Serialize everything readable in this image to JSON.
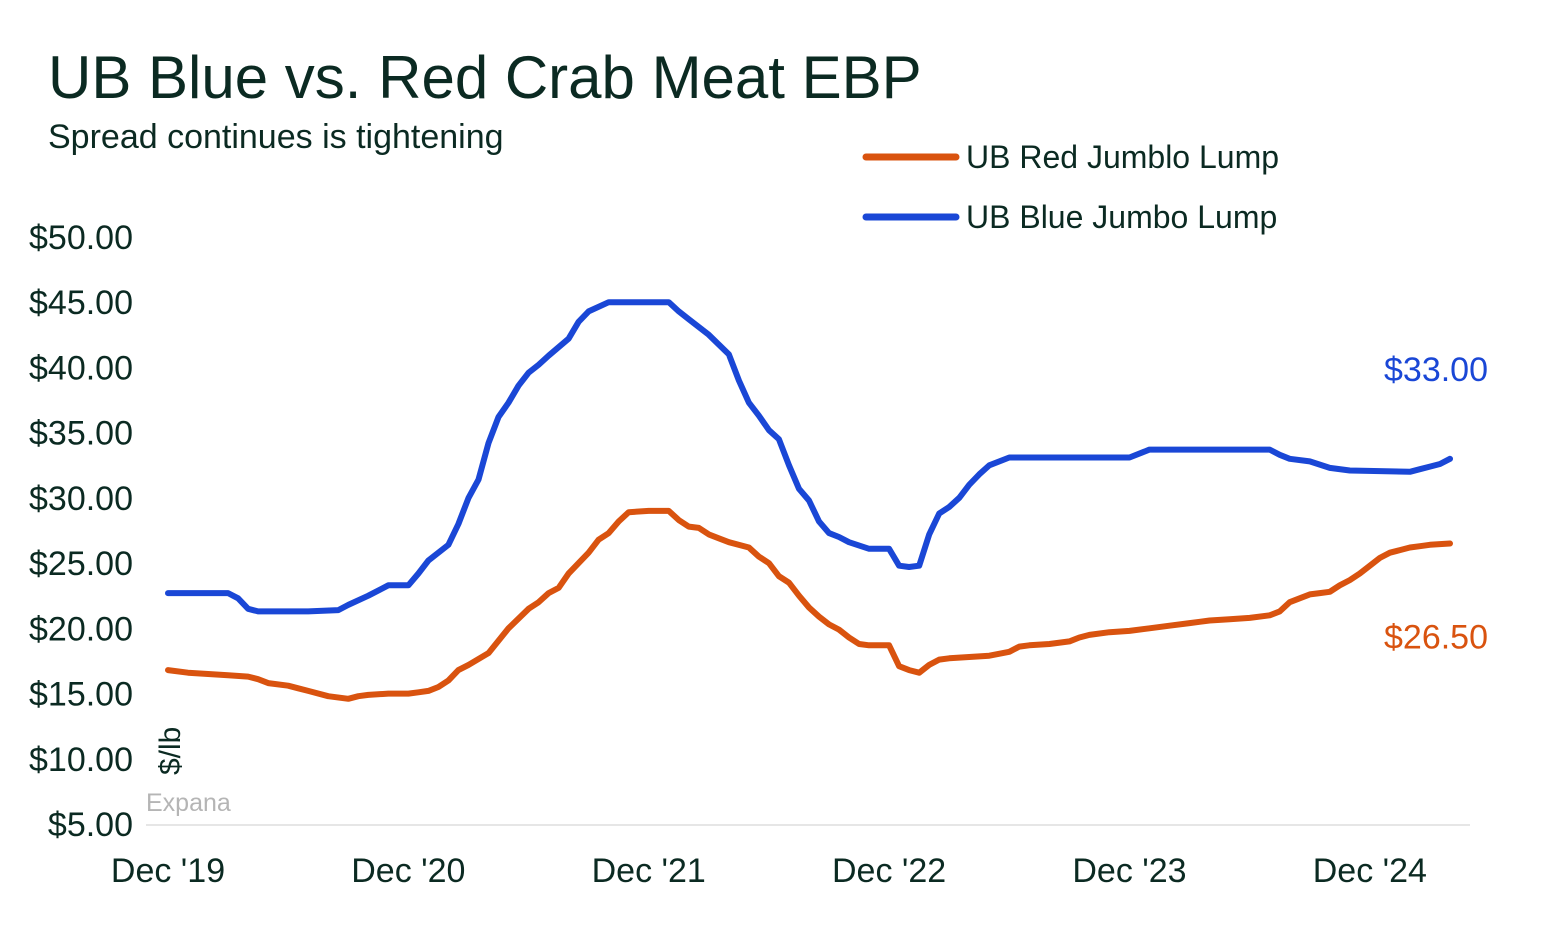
{
  "chart_data": {
    "type": "line",
    "title": "UB Blue vs. Red Crab Meat EBP",
    "subtitle": "Spread continues is tightening",
    "ylabel": "$/lb",
    "source": "Expana",
    "ylim": [
      5,
      50
    ],
    "y_ticks": [
      "$50.00",
      "$45.00",
      "$40.00",
      "$35.00",
      "$30.00",
      "$25.00",
      "$20.00",
      "$15.00",
      "$10.00",
      "$5.00"
    ],
    "y_tick_values": [
      50,
      45,
      40,
      35,
      30,
      25,
      20,
      15,
      10,
      5
    ],
    "x_ticks": [
      "Dec '19",
      "Dec '20",
      "Dec '21",
      "Dec '22",
      "Dec '23",
      "Dec '24"
    ],
    "x_tick_months": [
      0,
      12,
      24,
      36,
      48,
      60
    ],
    "x_range_months": [
      0,
      65
    ],
    "legend_position": "top-right",
    "series": [
      {
        "name": "UB Red Jumblo Lump",
        "color": "#d9530f",
        "end_label": "$26.50",
        "points": [
          [
            0,
            16.8
          ],
          [
            1,
            16.6
          ],
          [
            2,
            16.5
          ],
          [
            3,
            16.4
          ],
          [
            4,
            16.3
          ],
          [
            4.5,
            16.1
          ],
          [
            5,
            15.8
          ],
          [
            6,
            15.6
          ],
          [
            6.5,
            15.4
          ],
          [
            7,
            15.2
          ],
          [
            8,
            14.8
          ],
          [
            9,
            14.6
          ],
          [
            9.5,
            14.8
          ],
          [
            10,
            14.9
          ],
          [
            11,
            15
          ],
          [
            12,
            15
          ],
          [
            12.5,
            15.1
          ],
          [
            13,
            15.2
          ],
          [
            13.5,
            15.5
          ],
          [
            14,
            16
          ],
          [
            14.5,
            16.8
          ],
          [
            15,
            17.2
          ],
          [
            16,
            18.1
          ],
          [
            17,
            20
          ],
          [
            18,
            21.5
          ],
          [
            18.5,
            22
          ],
          [
            19,
            22.7
          ],
          [
            19.5,
            23.1
          ],
          [
            20,
            24.2
          ],
          [
            21,
            25.8
          ],
          [
            21.5,
            26.8
          ],
          [
            22,
            27.3
          ],
          [
            22.5,
            28.2
          ],
          [
            23,
            28.9
          ],
          [
            24,
            29
          ],
          [
            25,
            29
          ],
          [
            25.5,
            28.3
          ],
          [
            26,
            27.8
          ],
          [
            26.5,
            27.7
          ],
          [
            27,
            27.2
          ],
          [
            27.5,
            26.9
          ],
          [
            28,
            26.6
          ],
          [
            29,
            26.2
          ],
          [
            29.5,
            25.5
          ],
          [
            30,
            25
          ],
          [
            30.5,
            24
          ],
          [
            31,
            23.5
          ],
          [
            31.5,
            22.5
          ],
          [
            32,
            21.6
          ],
          [
            32.5,
            20.9
          ],
          [
            33,
            20.3
          ],
          [
            33.5,
            19.9
          ],
          [
            34,
            19.3
          ],
          [
            34.5,
            18.8
          ],
          [
            35,
            18.7
          ],
          [
            36,
            18.7
          ],
          [
            36.5,
            17.1
          ],
          [
            37,
            16.8
          ],
          [
            37.5,
            16.6
          ],
          [
            38,
            17.2
          ],
          [
            38.5,
            17.6
          ],
          [
            39,
            17.7
          ],
          [
            40,
            17.8
          ],
          [
            41,
            17.9
          ],
          [
            42,
            18.2
          ],
          [
            42.5,
            18.6
          ],
          [
            43,
            18.7
          ],
          [
            44,
            18.8
          ],
          [
            45,
            19
          ],
          [
            45.5,
            19.3
          ],
          [
            46,
            19.5
          ],
          [
            47,
            19.7
          ],
          [
            48,
            19.8
          ],
          [
            49,
            20
          ],
          [
            50,
            20.2
          ],
          [
            51,
            20.4
          ],
          [
            51.5,
            20.5
          ],
          [
            52,
            20.6
          ],
          [
            53,
            20.7
          ],
          [
            54,
            20.8
          ],
          [
            55,
            21
          ],
          [
            55.5,
            21.3
          ],
          [
            56,
            22
          ],
          [
            56.5,
            22.3
          ],
          [
            57,
            22.6
          ],
          [
            57.5,
            22.7
          ],
          [
            58,
            22.8
          ],
          [
            58.5,
            23.3
          ],
          [
            59,
            23.7
          ],
          [
            59.5,
            24.2
          ],
          [
            60,
            24.8
          ],
          [
            60.5,
            25.4
          ],
          [
            61,
            25.8
          ],
          [
            61.5,
            26
          ],
          [
            62,
            26.2
          ],
          [
            62.5,
            26.3
          ],
          [
            63,
            26.4
          ],
          [
            64,
            26.5
          ]
        ]
      },
      {
        "name": "UB Blue Jumbo Lump",
        "color": "#1a47d6",
        "end_label": "$33.00",
        "points": [
          [
            0,
            22.7
          ],
          [
            3,
            22.7
          ],
          [
            3.5,
            22.3
          ],
          [
            4,
            21.5
          ],
          [
            4.5,
            21.3
          ],
          [
            7,
            21.3
          ],
          [
            8.5,
            21.4
          ],
          [
            9,
            21.8
          ],
          [
            10,
            22.5
          ],
          [
            11,
            23.3
          ],
          [
            12,
            23.3
          ],
          [
            12.5,
            24.2
          ],
          [
            13,
            25.2
          ],
          [
            14,
            26.4
          ],
          [
            14.5,
            28
          ],
          [
            15,
            30
          ],
          [
            15.5,
            31.4
          ],
          [
            16,
            34.2
          ],
          [
            16.5,
            36.2
          ],
          [
            17,
            37.3
          ],
          [
            17.5,
            38.6
          ],
          [
            18,
            39.6
          ],
          [
            18.5,
            40.2
          ],
          [
            19,
            40.9
          ],
          [
            20,
            42.2
          ],
          [
            20.5,
            43.5
          ],
          [
            21,
            44.3
          ],
          [
            22,
            45
          ],
          [
            23,
            45
          ],
          [
            24,
            45
          ],
          [
            25,
            45
          ],
          [
            25.5,
            44.3
          ],
          [
            26,
            43.7
          ],
          [
            27,
            42.5
          ],
          [
            28,
            41
          ],
          [
            28.5,
            39
          ],
          [
            29,
            37.3
          ],
          [
            29.5,
            36.3
          ],
          [
            30,
            35.2
          ],
          [
            30.5,
            34.5
          ],
          [
            31,
            32.5
          ],
          [
            31.5,
            30.7
          ],
          [
            32,
            29.8
          ],
          [
            32.5,
            28.2
          ],
          [
            33,
            27.3
          ],
          [
            33.5,
            27
          ],
          [
            34,
            26.6
          ],
          [
            35,
            26.1
          ],
          [
            36,
            26.1
          ],
          [
            36.5,
            24.8
          ],
          [
            37,
            24.7
          ],
          [
            37.5,
            24.8
          ],
          [
            38,
            27.2
          ],
          [
            38.5,
            28.8
          ],
          [
            39,
            29.3
          ],
          [
            39.5,
            30
          ],
          [
            40,
            31
          ],
          [
            40.5,
            31.8
          ],
          [
            41,
            32.5
          ],
          [
            42,
            33.1
          ],
          [
            45,
            33.1
          ],
          [
            47,
            33.1
          ],
          [
            48,
            33.1
          ],
          [
            49,
            33.7
          ],
          [
            50,
            33.7
          ],
          [
            55,
            33.7
          ],
          [
            55.5,
            33.3
          ],
          [
            56,
            33
          ],
          [
            57,
            32.8
          ],
          [
            58,
            32.3
          ],
          [
            59,
            32.1
          ],
          [
            62,
            32
          ],
          [
            62.5,
            32.2
          ],
          [
            63,
            32.4
          ],
          [
            63.5,
            32.6
          ],
          [
            64,
            33
          ]
        ]
      }
    ]
  }
}
